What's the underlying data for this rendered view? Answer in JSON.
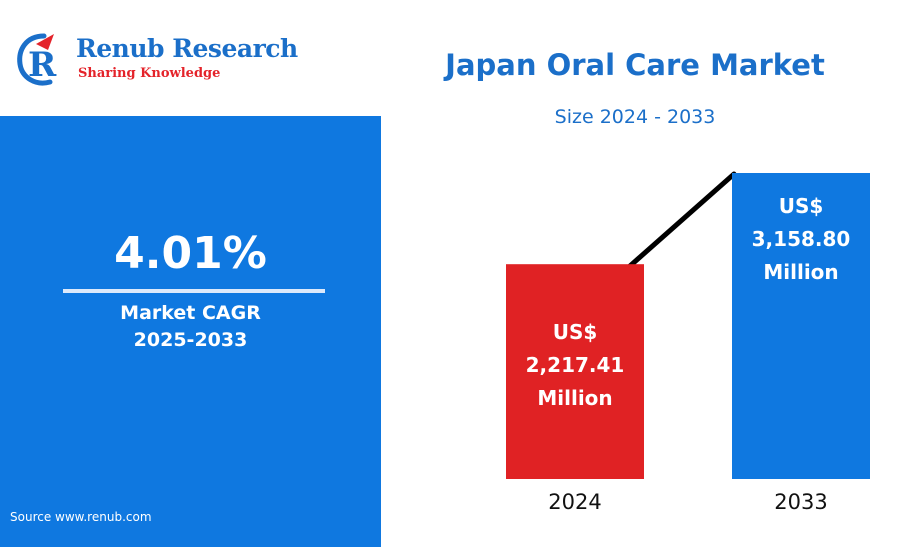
{
  "brand": {
    "name": "Renub Research",
    "tagline": "Sharing Knowledge",
    "logo_icon": "renub-r-swirl-icon",
    "primary_color": "#1b6fc9",
    "accent_color": "#e4232a"
  },
  "cagr": {
    "value": "4.01%",
    "label": "Market CAGR",
    "period": "2025-2033",
    "panel_color": "#0f78e0"
  },
  "source": "Source  www.renub.com",
  "chart_data": {
    "type": "bar",
    "title": "Japan Oral Care Market",
    "subtitle": "Size 2024 - 2033",
    "categories": [
      "2024",
      "2033"
    ],
    "values": [
      2217.41,
      3158.8
    ],
    "bar_labels": [
      [
        "US$",
        "2,217.41",
        "Million"
      ],
      [
        "US$",
        "3,158.80",
        "Million"
      ]
    ],
    "bar_colors": [
      "#e02224",
      "#0f78e0"
    ],
    "trend_line": true,
    "grid": false,
    "legend": "none"
  }
}
